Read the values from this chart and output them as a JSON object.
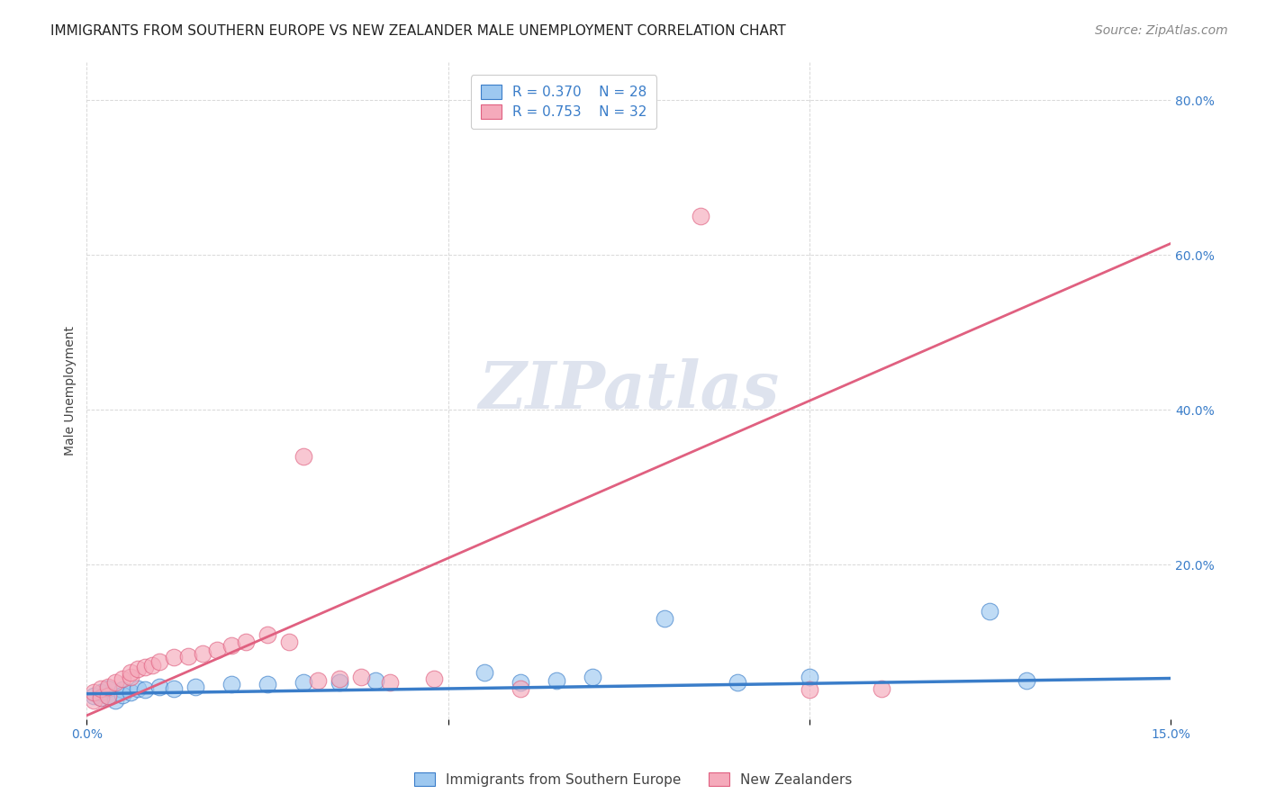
{
  "title": "IMMIGRANTS FROM SOUTHERN EUROPE VS NEW ZEALANDER MALE UNEMPLOYMENT CORRELATION CHART",
  "source": "Source: ZipAtlas.com",
  "xlabel": "",
  "ylabel": "Male Unemployment",
  "xlim": [
    0.0,
    0.15
  ],
  "ylim": [
    0.0,
    0.85
  ],
  "xticks": [
    0.0,
    0.05,
    0.1,
    0.15
  ],
  "yticks": [
    0.0,
    0.2,
    0.4,
    0.6,
    0.8
  ],
  "background_color": "#ffffff",
  "grid_color": "#d8d8d8",
  "blue_scatter_x": [
    0.001,
    0.002,
    0.002,
    0.003,
    0.003,
    0.004,
    0.005,
    0.005,
    0.006,
    0.007,
    0.008,
    0.01,
    0.012,
    0.015,
    0.02,
    0.025,
    0.03,
    0.035,
    0.04,
    0.055,
    0.06,
    0.065,
    0.07,
    0.08,
    0.09,
    0.1,
    0.125,
    0.13
  ],
  "blue_scatter_y": [
    0.03,
    0.028,
    0.035,
    0.03,
    0.04,
    0.025,
    0.038,
    0.032,
    0.035,
    0.04,
    0.038,
    0.042,
    0.04,
    0.042,
    0.045,
    0.045,
    0.048,
    0.048,
    0.05,
    0.06,
    0.048,
    0.05,
    0.055,
    0.13,
    0.048,
    0.055,
    0.14,
    0.05
  ],
  "pink_scatter_x": [
    0.001,
    0.001,
    0.002,
    0.002,
    0.003,
    0.003,
    0.004,
    0.005,
    0.006,
    0.006,
    0.007,
    0.008,
    0.009,
    0.01,
    0.012,
    0.014,
    0.016,
    0.018,
    0.02,
    0.022,
    0.025,
    0.028,
    0.03,
    0.032,
    0.035,
    0.038,
    0.042,
    0.048,
    0.06,
    0.085,
    0.1,
    0.11
  ],
  "pink_scatter_y": [
    0.025,
    0.035,
    0.028,
    0.04,
    0.03,
    0.042,
    0.048,
    0.052,
    0.055,
    0.06,
    0.065,
    0.068,
    0.07,
    0.075,
    0.08,
    0.082,
    0.085,
    0.09,
    0.095,
    0.1,
    0.11,
    0.1,
    0.34,
    0.05,
    0.052,
    0.055,
    0.048,
    0.052,
    0.04,
    0.65,
    0.038,
    0.04
  ],
  "blue_line_x": [
    0.0,
    0.15
  ],
  "blue_line_y": [
    0.033,
    0.053
  ],
  "pink_line_x": [
    0.0,
    0.15
  ],
  "pink_line_y": [
    0.005,
    0.615
  ],
  "blue_color": "#9DC8F0",
  "blue_line_color": "#3A7DC9",
  "pink_color": "#F5AABB",
  "pink_line_color": "#E06080",
  "legend_R_blue": "R = 0.370",
  "legend_N_blue": "N = 28",
  "legend_R_pink": "R = 0.753",
  "legend_N_pink": "N = 32",
  "legend_label_blue": "Immigrants from Southern Europe",
  "legend_label_pink": "New Zealanders",
  "title_fontsize": 11,
  "source_fontsize": 10,
  "axis_label_fontsize": 10,
  "tick_fontsize": 10,
  "legend_fontsize": 11
}
